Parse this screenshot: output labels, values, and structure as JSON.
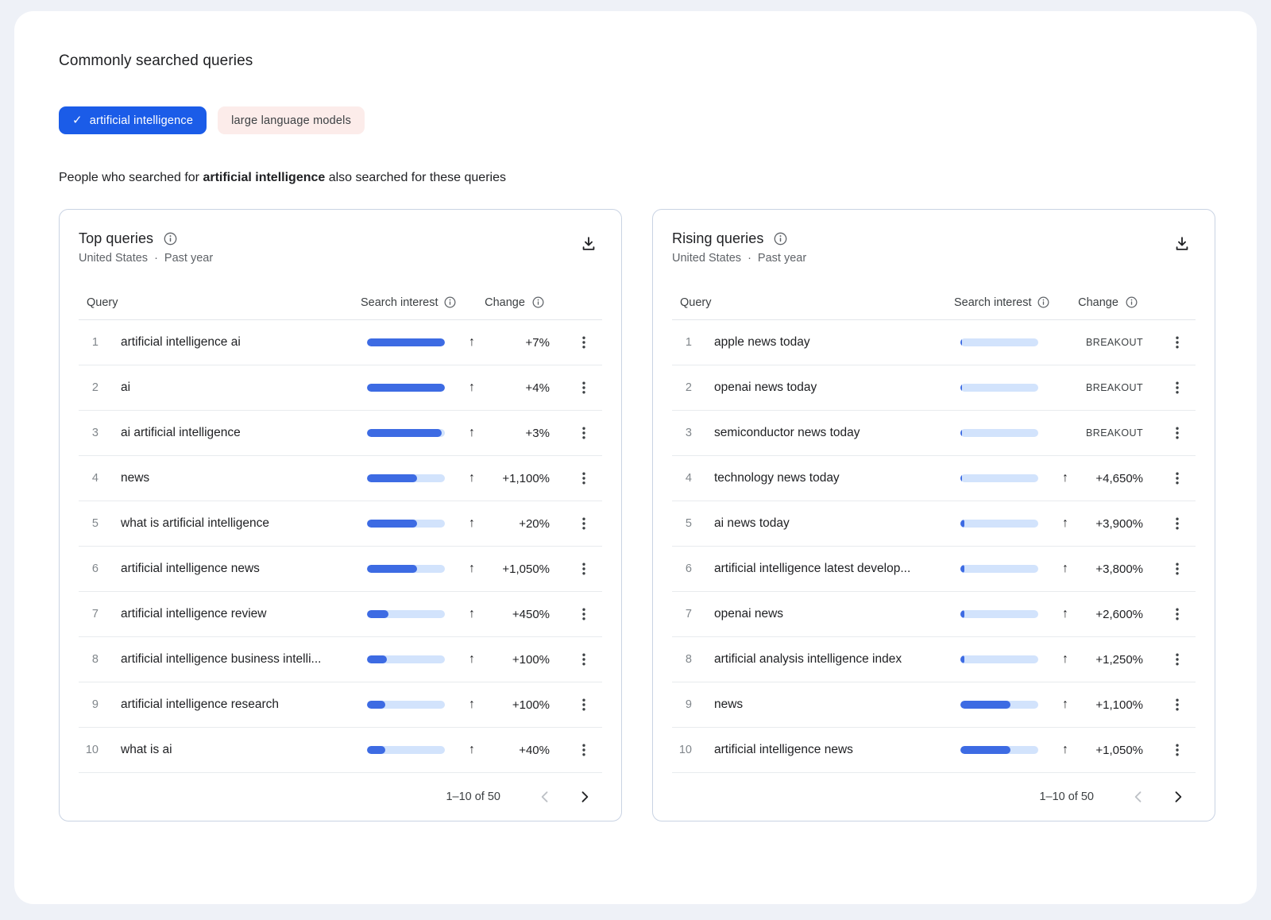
{
  "page": {
    "title": "Commonly searched queries",
    "chips": [
      {
        "label": "artificial intelligence",
        "selected": true,
        "icon": "check-icon"
      },
      {
        "label": "large language models",
        "selected": false
      }
    ],
    "description": {
      "prefix": "People who searched for ",
      "bold": "artificial intelligence",
      "suffix": " also searched for these queries"
    }
  },
  "colors": {
    "accent_blue": "#1b5ce8",
    "bar_fill": "#3d6be3",
    "bar_track": "#d2e3fc",
    "chip_unselected_bg": "#fcecea",
    "card_border": "#c9d3e3",
    "page_background": "#eef1f7",
    "text_primary": "#202124",
    "text_secondary": "#5f6368"
  },
  "cards": [
    {
      "title": "Top queries",
      "subtitle": {
        "region": "United States",
        "separator": "·",
        "period": "Past year"
      },
      "columns": {
        "query": "Query",
        "interest": "Search interest",
        "change": "Change"
      },
      "pagination": {
        "label": "1–10 of 50"
      },
      "rows": [
        {
          "rank": "1",
          "query": "artificial intelligence ai",
          "interest_pct": 100,
          "arrow": "↑",
          "change": "+7%"
        },
        {
          "rank": "2",
          "query": "ai",
          "interest_pct": 100,
          "arrow": "↑",
          "change": "+4%"
        },
        {
          "rank": "3",
          "query": "ai artificial intelligence",
          "interest_pct": 96,
          "arrow": "↑",
          "change": "+3%"
        },
        {
          "rank": "4",
          "query": "news",
          "interest_pct": 64,
          "arrow": "↑",
          "change": "+1,100%"
        },
        {
          "rank": "5",
          "query": "what is artificial intelligence",
          "interest_pct": 64,
          "arrow": "↑",
          "change": "+20%"
        },
        {
          "rank": "6",
          "query": "artificial intelligence news",
          "interest_pct": 64,
          "arrow": "↑",
          "change": "+1,050%"
        },
        {
          "rank": "7",
          "query": "artificial intelligence review",
          "interest_pct": 28,
          "arrow": "↑",
          "change": "+450%"
        },
        {
          "rank": "8",
          "query": "artificial intelligence business intelli...",
          "interest_pct": 26,
          "arrow": "↑",
          "change": "+100%"
        },
        {
          "rank": "9",
          "query": "artificial intelligence research",
          "interest_pct": 23,
          "arrow": "↑",
          "change": "+100%"
        },
        {
          "rank": "10",
          "query": "what is ai",
          "interest_pct": 23,
          "arrow": "↑",
          "change": "+40%"
        }
      ]
    },
    {
      "title": "Rising queries",
      "subtitle": {
        "region": "United States",
        "separator": "·",
        "period": "Past year"
      },
      "columns": {
        "query": "Query",
        "interest": "Search interest",
        "change": "Change"
      },
      "pagination": {
        "label": "1–10 of 50"
      },
      "rows": [
        {
          "rank": "1",
          "query": "apple news today",
          "interest_pct": 2,
          "arrow": "",
          "change": "BREAKOUT"
        },
        {
          "rank": "2",
          "query": "openai news today",
          "interest_pct": 2,
          "arrow": "",
          "change": "BREAKOUT"
        },
        {
          "rank": "3",
          "query": "semiconductor news today",
          "interest_pct": 2,
          "arrow": "",
          "change": "BREAKOUT"
        },
        {
          "rank": "4",
          "query": "technology news today",
          "interest_pct": 2,
          "arrow": "↑",
          "change": "+4,650%"
        },
        {
          "rank": "5",
          "query": "ai news today",
          "interest_pct": 5,
          "arrow": "↑",
          "change": "+3,900%"
        },
        {
          "rank": "6",
          "query": "artificial intelligence latest develop...",
          "interest_pct": 5,
          "arrow": "↑",
          "change": "+3,800%"
        },
        {
          "rank": "7",
          "query": "openai news",
          "interest_pct": 5,
          "arrow": "↑",
          "change": "+2,600%"
        },
        {
          "rank": "8",
          "query": "artificial analysis intelligence index",
          "interest_pct": 5,
          "arrow": "↑",
          "change": "+1,250%"
        },
        {
          "rank": "9",
          "query": "news",
          "interest_pct": 64,
          "arrow": "↑",
          "change": "+1,100%"
        },
        {
          "rank": "10",
          "query": "artificial intelligence news",
          "interest_pct": 64,
          "arrow": "↑",
          "change": "+1,050%"
        }
      ]
    }
  ]
}
